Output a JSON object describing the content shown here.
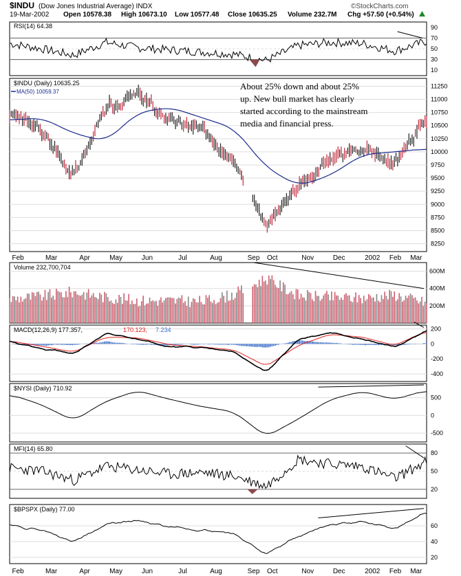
{
  "header": {
    "symbol": "$INDU",
    "description": "(Dow Jones Industrial Average) INDX",
    "date": "19-Mar-2002",
    "open": "Open 10578.38",
    "high": "High 10673.10",
    "low": "Low 10577.48",
    "close": "Close 10635.25",
    "volume": "Volume 232.7M",
    "change": "Chg +57.50 (+0.54%)",
    "change_arrow": "up-triangle-icon",
    "watermark": "©StockCharts.com"
  },
  "colors": {
    "up": "#222222",
    "down": "#c0283c",
    "ma": "#1a2a8c",
    "macd_signal": "#e02020",
    "hist": "#3a6ec8",
    "volume_up": "#888888",
    "volume_down": "#d06070",
    "rsi_fill": "#8b4a4a",
    "grid": "#dddddd"
  },
  "x_ticks": [
    "Feb",
    "Mar",
    "Apr",
    "May",
    "Jun",
    "Jul",
    "Aug",
    "Sep",
    "Oct",
    "Nov",
    "Dec",
    "2002",
    "Feb",
    "Mar"
  ],
  "annotation": [
    "About 25% down and about 25%",
    "up. New bull market has clearly",
    "started according to the mainstream",
    "media and financial press."
  ],
  "panels": {
    "rsi": {
      "label": "RSI(14) 64.38",
      "ticks": [
        "90",
        "70",
        "50",
        "30",
        "10"
      ]
    },
    "price": {
      "label": "$INDU (Daily) 10635.25",
      "ma_label": "MA(50) 10059.37",
      "ticks": [
        "11250",
        "11000",
        "10750",
        "10500",
        "10250",
        "10000",
        "9750",
        "9500",
        "9250",
        "9000",
        "8750",
        "8500",
        "8250"
      ]
    },
    "volume": {
      "label": "Volume 232,700,704",
      "ticks": [
        "600M",
        "400M",
        "200M"
      ]
    },
    "macd": {
      "label_a": "MACD(12,26,9) 177.357,",
      "label_b": "170.123,",
      "label_c": "7.234",
      "ticks": [
        "200",
        "0",
        "-200",
        "-400"
      ]
    },
    "nysi": {
      "label": "$NYSI (Daily) 710.92",
      "ticks": [
        "500",
        "0",
        "-500"
      ]
    },
    "mfi": {
      "label": "MFI(14) 65.80",
      "ticks": [
        "80",
        "50",
        "20"
      ]
    },
    "bpspx": {
      "label": "$BPSPX (Daily) 77.00",
      "ticks": [
        "60",
        "40",
        "20"
      ]
    }
  },
  "chart_data": {
    "type": "line",
    "title": "$INDU (Dow Jones Industrial Average) INDX",
    "x": [
      "Feb",
      "Mar",
      "Apr",
      "May",
      "Jun",
      "Jul",
      "Aug",
      "Sep",
      "Oct",
      "Nov",
      "Dec",
      "2002",
      "Feb",
      "Mar"
    ],
    "price_ylim": [
      8100,
      11400
    ],
    "series": [
      {
        "name": "$INDU (Daily)",
        "values": [
          10750,
          10400,
          9550,
          10800,
          11100,
          10600,
          10400,
          9900,
          8600,
          9300,
          9900,
          10100,
          9800,
          10600
        ]
      },
      {
        "name": "MA(50)",
        "values": [
          10600,
          10650,
          10350,
          10200,
          10750,
          10850,
          10650,
          10450,
          9700,
          9350,
          9550,
          9950,
          10000,
          10059
        ]
      },
      {
        "name": "RSI(14)",
        "values": [
          60,
          50,
          38,
          62,
          52,
          48,
          44,
          40,
          28,
          56,
          62,
          60,
          46,
          64
        ]
      },
      {
        "name": "Volume (M)",
        "values": [
          280,
          310,
          360,
          300,
          260,
          260,
          250,
          330,
          520,
          320,
          300,
          290,
          330,
          233
        ]
      },
      {
        "name": "MACD",
        "values": [
          30,
          -60,
          -130,
          140,
          60,
          -40,
          -40,
          -100,
          -380,
          60,
          150,
          60,
          -40,
          177
        ]
      },
      {
        "name": "MACD Signal",
        "values": [
          40,
          -30,
          -110,
          90,
          80,
          -10,
          -40,
          -80,
          -300,
          -20,
          130,
          90,
          -20,
          170
        ]
      },
      {
        "name": "$NYSI",
        "values": [
          600,
          300,
          -150,
          400,
          700,
          450,
          250,
          100,
          -600,
          -100,
          450,
          680,
          450,
          711
        ]
      },
      {
        "name": "MFI(14)",
        "values": [
          55,
          50,
          35,
          58,
          52,
          45,
          48,
          42,
          25,
          70,
          62,
          58,
          38,
          66
        ]
      },
      {
        "name": "$BPSPX",
        "values": [
          60,
          55,
          40,
          62,
          66,
          58,
          54,
          50,
          24,
          46,
          62,
          66,
          56,
          77
        ]
      }
    ]
  }
}
